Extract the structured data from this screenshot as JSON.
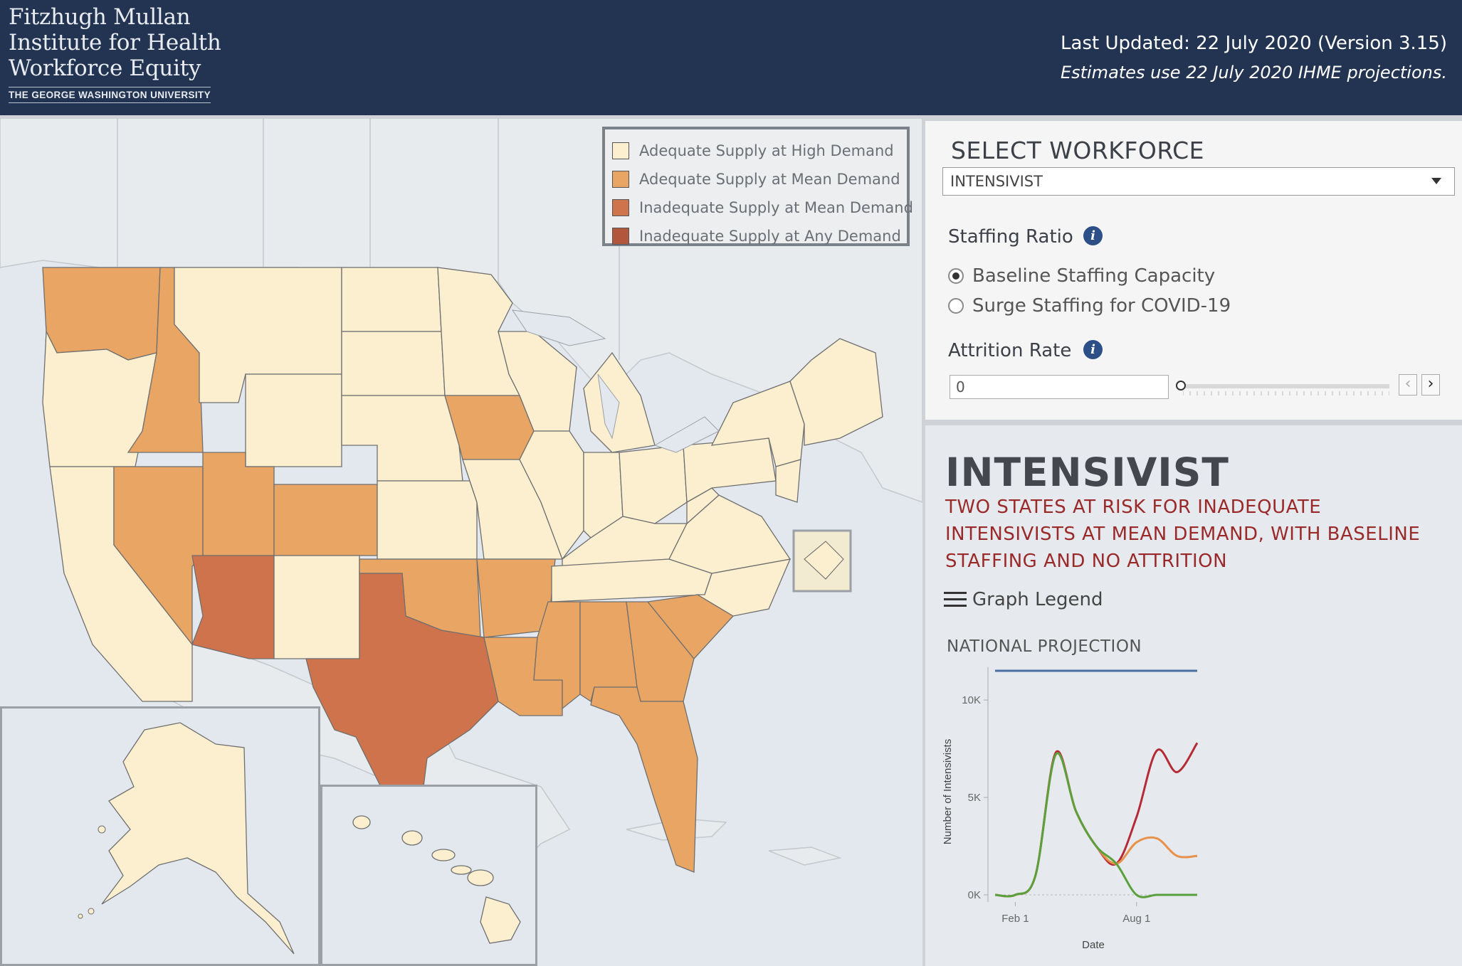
{
  "header": {
    "logo_lines": [
      "Fitzhugh Mullan",
      "Institute for Health",
      "Workforce Equity"
    ],
    "logo_sub": "THE GEORGE WASHINGTON UNIVERSITY",
    "last_updated": "Last Updated: 22 July 2020 (Version 3.15)",
    "estimates": "Estimates use  22 July 2020 IHME projections."
  },
  "map": {
    "legend": [
      {
        "label": "Adequate Supply at High Demand",
        "color": "#fbefd0"
      },
      {
        "label": "Adequate Supply at Mean Demand",
        "color": "#e9a564"
      },
      {
        "label": "Inadequate Supply at Mean Demand",
        "color": "#cf734c"
      },
      {
        "label": "Inadequate Supply at Any Demand",
        "color": "#b2563d"
      }
    ],
    "state_status": {
      "mean_demand_adequate": [
        "WA",
        "ID",
        "NV",
        "UT",
        "CO",
        "IA",
        "OK",
        "AR",
        "LA",
        "MS",
        "AL",
        "GA",
        "SC",
        "FL"
      ],
      "mean_demand_inadequate": [
        "AZ",
        "TX"
      ]
    }
  },
  "controls": {
    "select_workforce_title": "SELECT WORKFORCE",
    "workforce_value": "INTENSIVIST",
    "staffing_ratio_label": "Staffing Ratio",
    "staffing_options": [
      {
        "label": "Baseline Staffing Capacity",
        "checked": true
      },
      {
        "label": "Surge Staffing for COVID-19",
        "checked": false
      }
    ],
    "attrition_label": "Attrition Rate",
    "attrition_value": "0",
    "attrition_slider_fraction": 0,
    "info_icon": "i",
    "prev_icon": "‹",
    "next_icon": "›"
  },
  "summary": {
    "title": "INTENSIVIST",
    "headline": "TWO STATES AT RISK FOR INADEQUATE INTENSIVISTS AT MEAN DEMAND, WITH BASELINE STAFFING AND NO ATTRITION",
    "graph_legend_label": "Graph Legend",
    "national_projection_title": "NATIONAL PROJECTION"
  },
  "chart_data": {
    "type": "line",
    "title": "NATIONAL PROJECTION",
    "xlabel": "Date",
    "ylabel": "Number of Intensivists",
    "x_ticks": [
      "Feb 1",
      "Aug 1"
    ],
    "y_ticks": [
      "0K",
      "5K",
      "10K"
    ],
    "ylim": [
      0,
      11500
    ],
    "x": [
      "Jan 1",
      "Feb 1",
      "Mar 1",
      "Apr 1",
      "May 1",
      "Jun 1",
      "Jul 1",
      "Aug 1",
      "Sep 1",
      "Oct 1",
      "Nov 1"
    ],
    "series": [
      {
        "color": "#4a6fa5",
        "values": [
          11500,
          11500,
          11500,
          11500,
          11500,
          11500,
          11500,
          11500,
          11500,
          11500,
          11500
        ]
      },
      {
        "color": "#b52b35",
        "values": [
          0,
          0,
          1000,
          7300,
          4300,
          2500,
          1600,
          4000,
          7400,
          6300,
          7800
        ]
      },
      {
        "color": "#e8914a",
        "values": [
          0,
          0,
          1000,
          7200,
          4300,
          2500,
          1600,
          2700,
          2900,
          2000,
          2000
        ]
      },
      {
        "color": "#5aa03c",
        "values": [
          0,
          0,
          1000,
          7200,
          4300,
          2500,
          1600,
          0,
          0,
          0,
          0
        ]
      }
    ],
    "grid": false,
    "baseline_dashed": true
  }
}
